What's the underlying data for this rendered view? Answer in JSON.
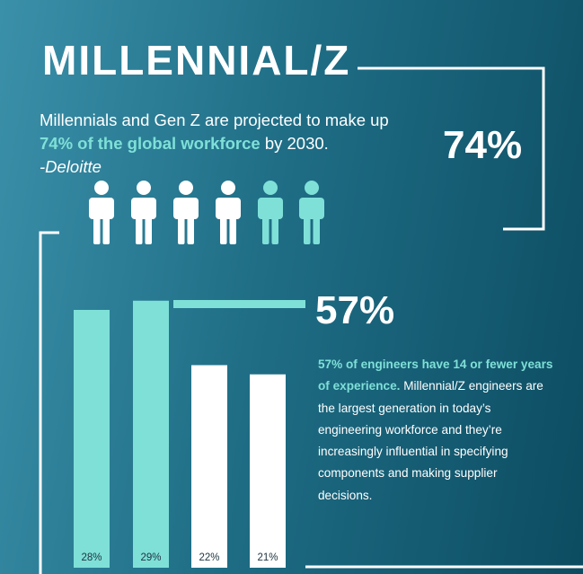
{
  "header": {
    "title": "MILLENNIAL/Z"
  },
  "intro": {
    "lead": "Millennials and Gen Z are projected to make up ",
    "highlight": "74% of the global workforce",
    "tail": " by 2030.",
    "source": "-Deloitte"
  },
  "stat_top": "74%",
  "stat_bottom": "57%",
  "detail": {
    "highlight": "57% of engineers have 14 or fewer years of experience.",
    "text": " Millennial/Z engineers are the largest generation in today’s engineering workforce and they’re increasingly influential in specifying components and making supplier decisions."
  },
  "chart_data": {
    "type": "bar",
    "values": [
      28,
      29,
      22,
      21
    ],
    "value_labels": [
      "28%",
      "29%",
      "22%",
      "21%"
    ],
    "colors": [
      "#7fe0d8",
      "#7fe0d8",
      "#ffffff",
      "#ffffff"
    ]
  }
}
